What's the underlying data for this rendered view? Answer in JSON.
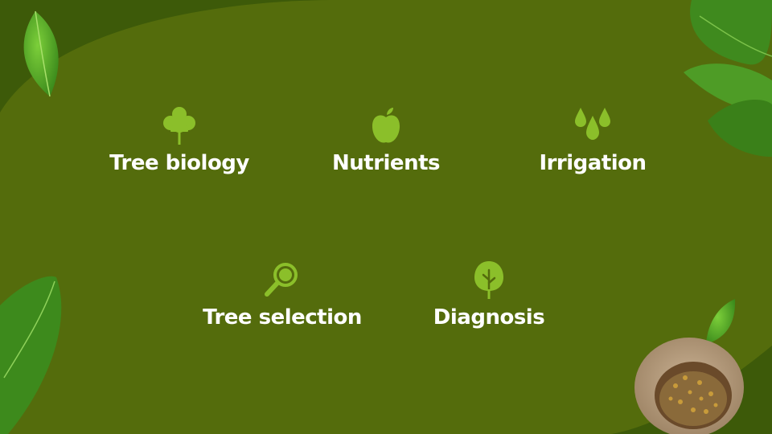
{
  "slide": {
    "background_color": "#536b0c",
    "accent_color": "#8bbf2a",
    "topics": [
      {
        "label": "Tree biology",
        "icon": "tree-icon"
      },
      {
        "label": "Nutrients",
        "icon": "apple-icon"
      },
      {
        "label": "Irrigation",
        "icon": "water-drops-icon"
      },
      {
        "label": "Tree selection",
        "icon": "magnifier-icon"
      },
      {
        "label": "Diagnosis",
        "icon": "leaf-tree-icon"
      }
    ]
  }
}
